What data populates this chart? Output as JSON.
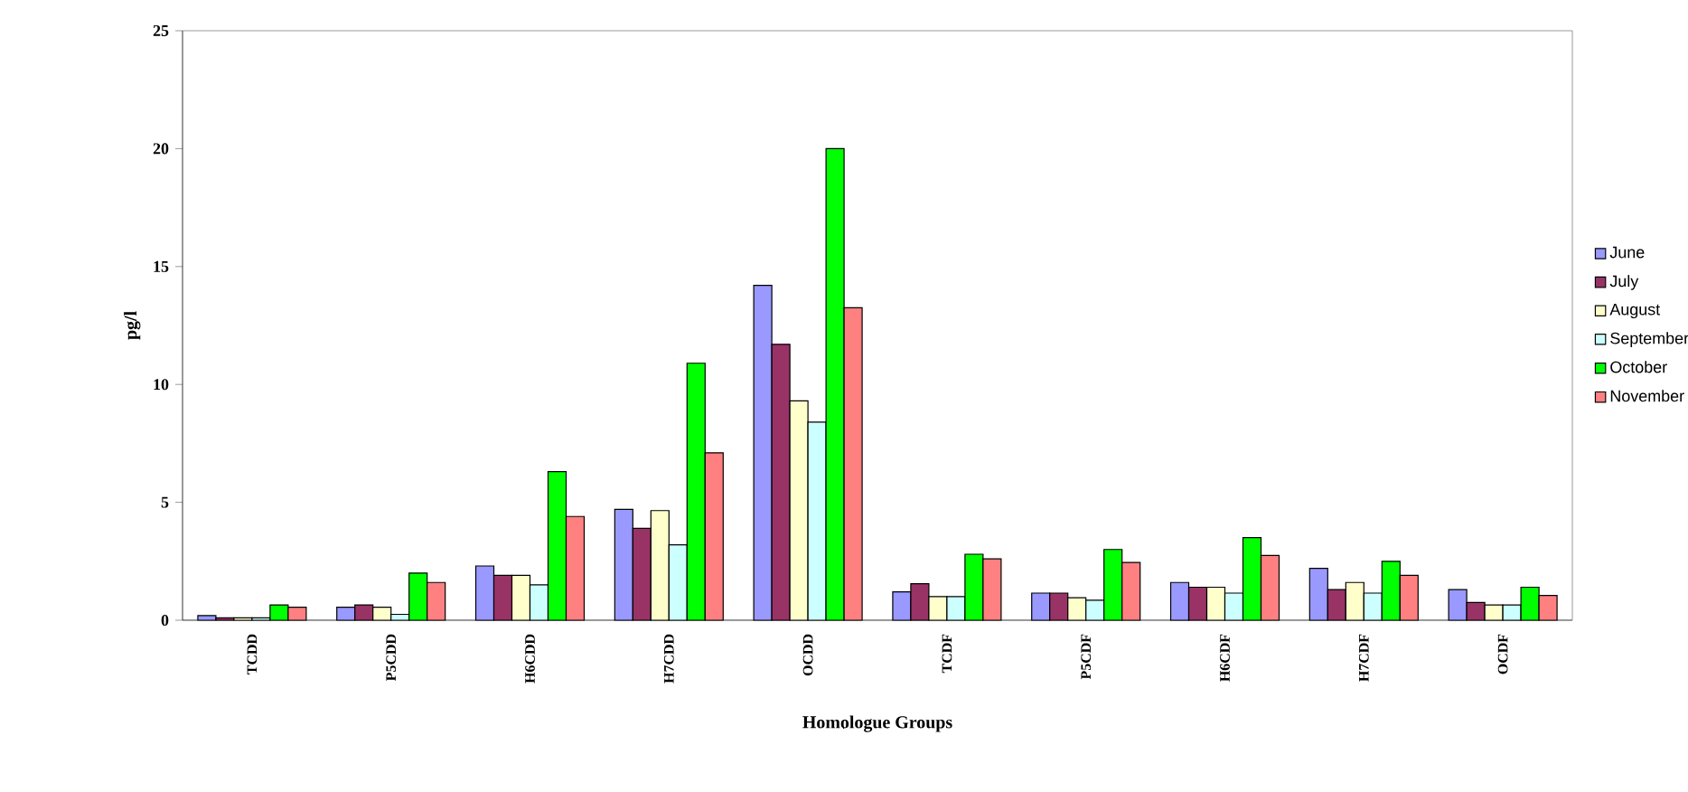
{
  "chart_data": {
    "type": "bar",
    "xlabel": "Homologue Groups",
    "ylabel": "pg/l",
    "categories": [
      "TCDD",
      "P5CDD",
      "H6CDD",
      "H7CDD",
      "OCDD",
      "TCDF",
      "P5CDF",
      "H6CDF",
      "H7CDF",
      "OCDF"
    ],
    "series": [
      {
        "name": "June",
        "color": "#9999ff",
        "values": [
          0.2,
          0.55,
          2.3,
          4.7,
          14.2,
          1.2,
          1.15,
          1.6,
          2.2,
          1.3
        ]
      },
      {
        "name": "July",
        "color": "#993366",
        "values": [
          0.1,
          0.65,
          1.9,
          3.9,
          11.7,
          1.55,
          1.15,
          1.4,
          1.3,
          0.75
        ]
      },
      {
        "name": "August",
        "color": "#ffffcc",
        "values": [
          0.1,
          0.55,
          1.9,
          4.65,
          9.3,
          1.0,
          0.95,
          1.4,
          1.6,
          0.65
        ]
      },
      {
        "name": "September",
        "color": "#ccffff",
        "values": [
          0.1,
          0.25,
          1.5,
          3.2,
          8.4,
          1.0,
          0.85,
          1.15,
          1.15,
          0.65
        ]
      },
      {
        "name": "October",
        "color": "#00ff00",
        "values": [
          0.65,
          2.0,
          6.3,
          10.9,
          20.0,
          2.8,
          3.0,
          3.5,
          2.5,
          1.4
        ]
      },
      {
        "name": "November",
        "color": "#ff8080",
        "values": [
          0.55,
          1.6,
          4.4,
          7.1,
          13.25,
          2.6,
          2.45,
          2.75,
          1.9,
          1.05
        ]
      }
    ],
    "ylim": [
      0,
      25
    ],
    "yticks": [
      0,
      5,
      10,
      15,
      20,
      25
    ],
    "legend": "right"
  }
}
